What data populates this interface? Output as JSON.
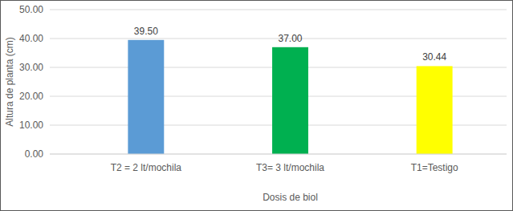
{
  "chart_data": {
    "type": "bar",
    "categories": [
      "T2 = 2 lt/mochila",
      "T3= 3 lt/mochila",
      "T1=Testigo"
    ],
    "values": [
      39.5,
      37.0,
      30.44
    ],
    "value_labels": [
      "39.50",
      "37.00",
      "30.44"
    ],
    "colors": [
      "#5b9bd5",
      "#00b050",
      "#ffff00"
    ],
    "x_label": "Dosis de biol",
    "y_label": "Altura de planta (cm)",
    "ylim": [
      0,
      50
    ],
    "yticks": [
      {
        "value": 0,
        "label": "0.00"
      },
      {
        "value": 10,
        "label": "10.00"
      },
      {
        "value": 20,
        "label": "20.00"
      },
      {
        "value": 30,
        "label": "30.00"
      },
      {
        "value": 40,
        "label": "40.00"
      },
      {
        "value": 50,
        "label": "50.00"
      }
    ],
    "grid": true,
    "data_labels": true
  }
}
